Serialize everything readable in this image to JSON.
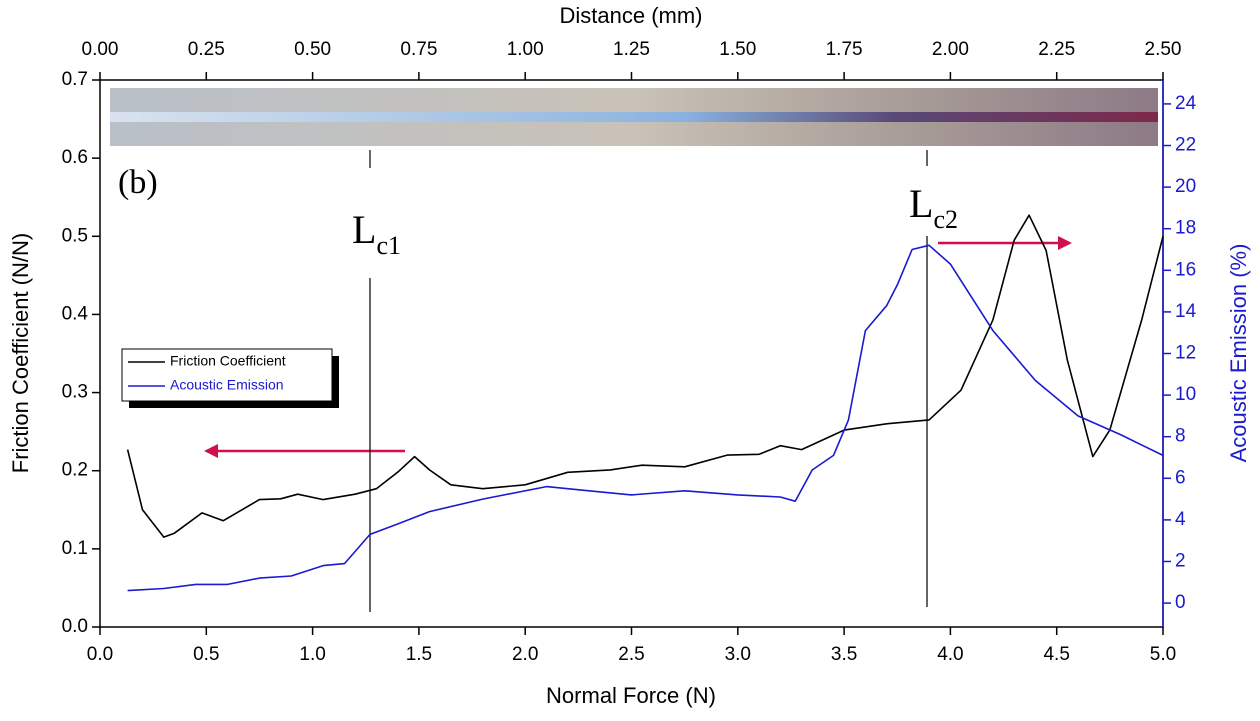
{
  "chart_data": {
    "type": "line",
    "xlabel": "Normal Force (N)",
    "x2label": "Distance (mm)",
    "ylabel": "Friction Coefficient (N/N)",
    "y2label": "Acoustic Emission (%)",
    "panel_label": "(b)",
    "xlim": [
      0,
      5
    ],
    "xticks": [
      {
        "value": 0,
        "label": "0.0"
      },
      {
        "value": 0.5,
        "label": "0.5"
      },
      {
        "value": 1,
        "label": "1.0"
      },
      {
        "value": 1.5,
        "label": "1.5"
      },
      {
        "value": 2,
        "label": "2.0"
      },
      {
        "value": 2.5,
        "label": "2.5"
      },
      {
        "value": 3,
        "label": "3.0"
      },
      {
        "value": 3.5,
        "label": "3.5"
      },
      {
        "value": 4,
        "label": "4.0"
      },
      {
        "value": 4.5,
        "label": "4.5"
      },
      {
        "value": 5,
        "label": "5.0"
      }
    ],
    "x2lim": [
      0,
      2.5
    ],
    "x2ticks": [
      {
        "value": 0,
        "label": "0.00"
      },
      {
        "value": 0.25,
        "label": "0.25"
      },
      {
        "value": 0.5,
        "label": "0.50"
      },
      {
        "value": 0.75,
        "label": "0.75"
      },
      {
        "value": 1,
        "label": "1.00"
      },
      {
        "value": 1.25,
        "label": "1.25"
      },
      {
        "value": 1.5,
        "label": "1.50"
      },
      {
        "value": 1.75,
        "label": "1.75"
      },
      {
        "value": 2,
        "label": "2.00"
      },
      {
        "value": 2.25,
        "label": "2.25"
      },
      {
        "value": 2.5,
        "label": "2.50"
      }
    ],
    "ylim": [
      0,
      0.7
    ],
    "yticks": [
      {
        "value": 0,
        "label": "0.0"
      },
      {
        "value": 0.1,
        "label": "0.1"
      },
      {
        "value": 0.2,
        "label": "0.2"
      },
      {
        "value": 0.3,
        "label": "0.3"
      },
      {
        "value": 0.4,
        "label": "0.4"
      },
      {
        "value": 0.5,
        "label": "0.5"
      },
      {
        "value": 0.6,
        "label": "0.6"
      },
      {
        "value": 0.7,
        "label": "0.7"
      }
    ],
    "y2lim": [
      -1.15,
      25.15
    ],
    "y2ticks": [
      0,
      2,
      4,
      6,
      8,
      10,
      12,
      14,
      16,
      18,
      20,
      22,
      24
    ],
    "legend": "left",
    "series": [
      {
        "name": "Friction Coefficient",
        "color": "#000000",
        "x": [
          0.13,
          0.2,
          0.3,
          0.35,
          0.48,
          0.58,
          0.75,
          0.85,
          0.93,
          1.05,
          1.2,
          1.3,
          1.4,
          1.48,
          1.55,
          1.65,
          1.8,
          2.0,
          2.2,
          2.4,
          2.55,
          2.75,
          2.95,
          3.1,
          3.2,
          3.3,
          3.5,
          3.7,
          3.9,
          4.05,
          4.2,
          4.3,
          4.37,
          4.45,
          4.55,
          4.67,
          4.75,
          4.9,
          5.0
        ],
        "values": [
          0.227,
          0.15,
          0.115,
          0.12,
          0.146,
          0.136,
          0.163,
          0.164,
          0.17,
          0.163,
          0.17,
          0.177,
          0.198,
          0.218,
          0.201,
          0.182,
          0.177,
          0.182,
          0.198,
          0.201,
          0.207,
          0.205,
          0.22,
          0.221,
          0.232,
          0.227,
          0.252,
          0.26,
          0.265,
          0.303,
          0.393,
          0.495,
          0.527,
          0.482,
          0.342,
          0.218,
          0.252,
          0.393,
          0.5
        ]
      },
      {
        "name": "Acoustic Emission",
        "color": "#1a1ad0",
        "axis": "y2",
        "x": [
          0.13,
          0.3,
          0.45,
          0.6,
          0.75,
          0.9,
          1.05,
          1.15,
          1.27,
          1.4,
          1.55,
          1.8,
          2.1,
          2.3,
          2.5,
          2.75,
          3.0,
          3.2,
          3.27,
          3.35,
          3.45,
          3.52,
          3.6,
          3.7,
          3.75,
          3.82,
          3.9,
          4.0,
          4.2,
          4.4,
          4.6,
          4.8,
          5.0
        ],
        "values": [
          0.6,
          0.7,
          0.9,
          0.9,
          1.2,
          1.3,
          1.8,
          1.9,
          3.3,
          3.8,
          4.4,
          5.0,
          5.6,
          5.4,
          5.2,
          5.4,
          5.2,
          5.1,
          4.9,
          6.4,
          7.1,
          8.8,
          13.1,
          14.3,
          15.3,
          17.0,
          17.2,
          16.3,
          13.1,
          10.7,
          9.0,
          8.1,
          7.1
        ]
      }
    ],
    "markers": [
      {
        "x": 1.27,
        "label": "L",
        "sub": "c1"
      },
      {
        "x": 3.89,
        "label": "L",
        "sub": "c2"
      }
    ]
  }
}
